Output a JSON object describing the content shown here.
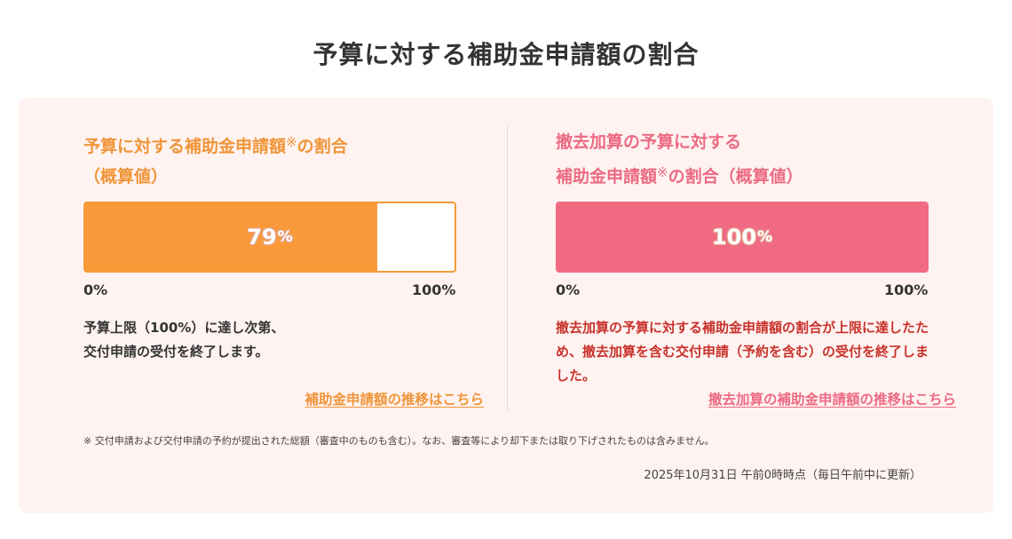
{
  "page_title": "予算に対する補助金申請額の割合",
  "left_panel": {
    "title_part1": "予算に対する補助金申請額",
    "title_mark": "※",
    "title_part2": "の割合",
    "title_line2": "（概算値）",
    "progress_percent": 79,
    "percent_text": "79",
    "percent_unit": "%",
    "axis_min": "0%",
    "axis_max": "100%",
    "note_line1": "予算上限（100%）に達し次第、",
    "note_line2": "交付申請の受付を終了します。",
    "link_text": "補助金申請額の推移はこちら",
    "bar_color": "#f9993a",
    "text_color": "#f0953a"
  },
  "right_panel": {
    "title_line1": "撤去加算の予算に対する",
    "title_part1": "補助金申請額",
    "title_mark": "※",
    "title_part2": "の割合（概算値）",
    "progress_percent": 100,
    "percent_text": "100",
    "percent_unit": "%",
    "axis_min": "0%",
    "axis_max": "100%",
    "note_line1": "撤去加算の予算に対する補助金申請額の割合が上限に達したた",
    "note_line2": "め、撤去加算を含む交付申請（予約を含む）の受付を終了しま",
    "note_line3": "した。",
    "link_text": "撤去加算の補助金申請額の推移はこちら",
    "bar_color": "#f06a82",
    "text_color": "#ec6b83",
    "note_color": "#c8322b"
  },
  "footnote": "※ 交付申請および交付申請の予約が提出された総額（審査中のものも含む）。なお、審査等により却下または取り下げされたものは含みません。",
  "timestamp": "2025年10月31日 午前0時時点（毎日午前中に更新）"
}
